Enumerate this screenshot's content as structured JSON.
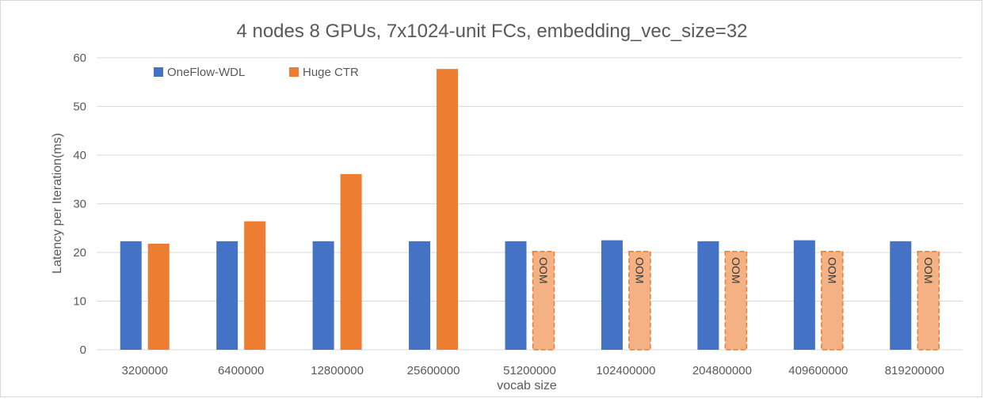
{
  "chart_data": {
    "type": "bar",
    "title": "4 nodes 8 GPUs, 7x1024-unit FCs, embedding_vec_size=32",
    "xlabel": "vocab size",
    "ylabel": "Latency per Iteration(ms)",
    "ylim": [
      0,
      60
    ],
    "yticks": [
      0,
      10,
      20,
      30,
      40,
      50,
      60
    ],
    "grid": true,
    "legend_position": "top-left",
    "categories": [
      "3200000",
      "6400000",
      "12800000",
      "25600000",
      "51200000",
      "102400000",
      "204800000",
      "409600000",
      "819200000"
    ],
    "series": [
      {
        "name": "OneFlow-WDL",
        "color": "#4472C4",
        "values": [
          22.3,
          22.3,
          22.3,
          22.3,
          22.3,
          22.5,
          22.3,
          22.5,
          22.3
        ]
      },
      {
        "name": "Huge CTR",
        "color": "#ED7D31",
        "values": [
          21.8,
          26.4,
          36.1,
          57.7,
          null,
          null,
          null,
          null,
          null
        ],
        "placeholder_value": 20.2,
        "placeholder_label": "OOM",
        "placeholder_color": "#F4B183"
      }
    ]
  }
}
